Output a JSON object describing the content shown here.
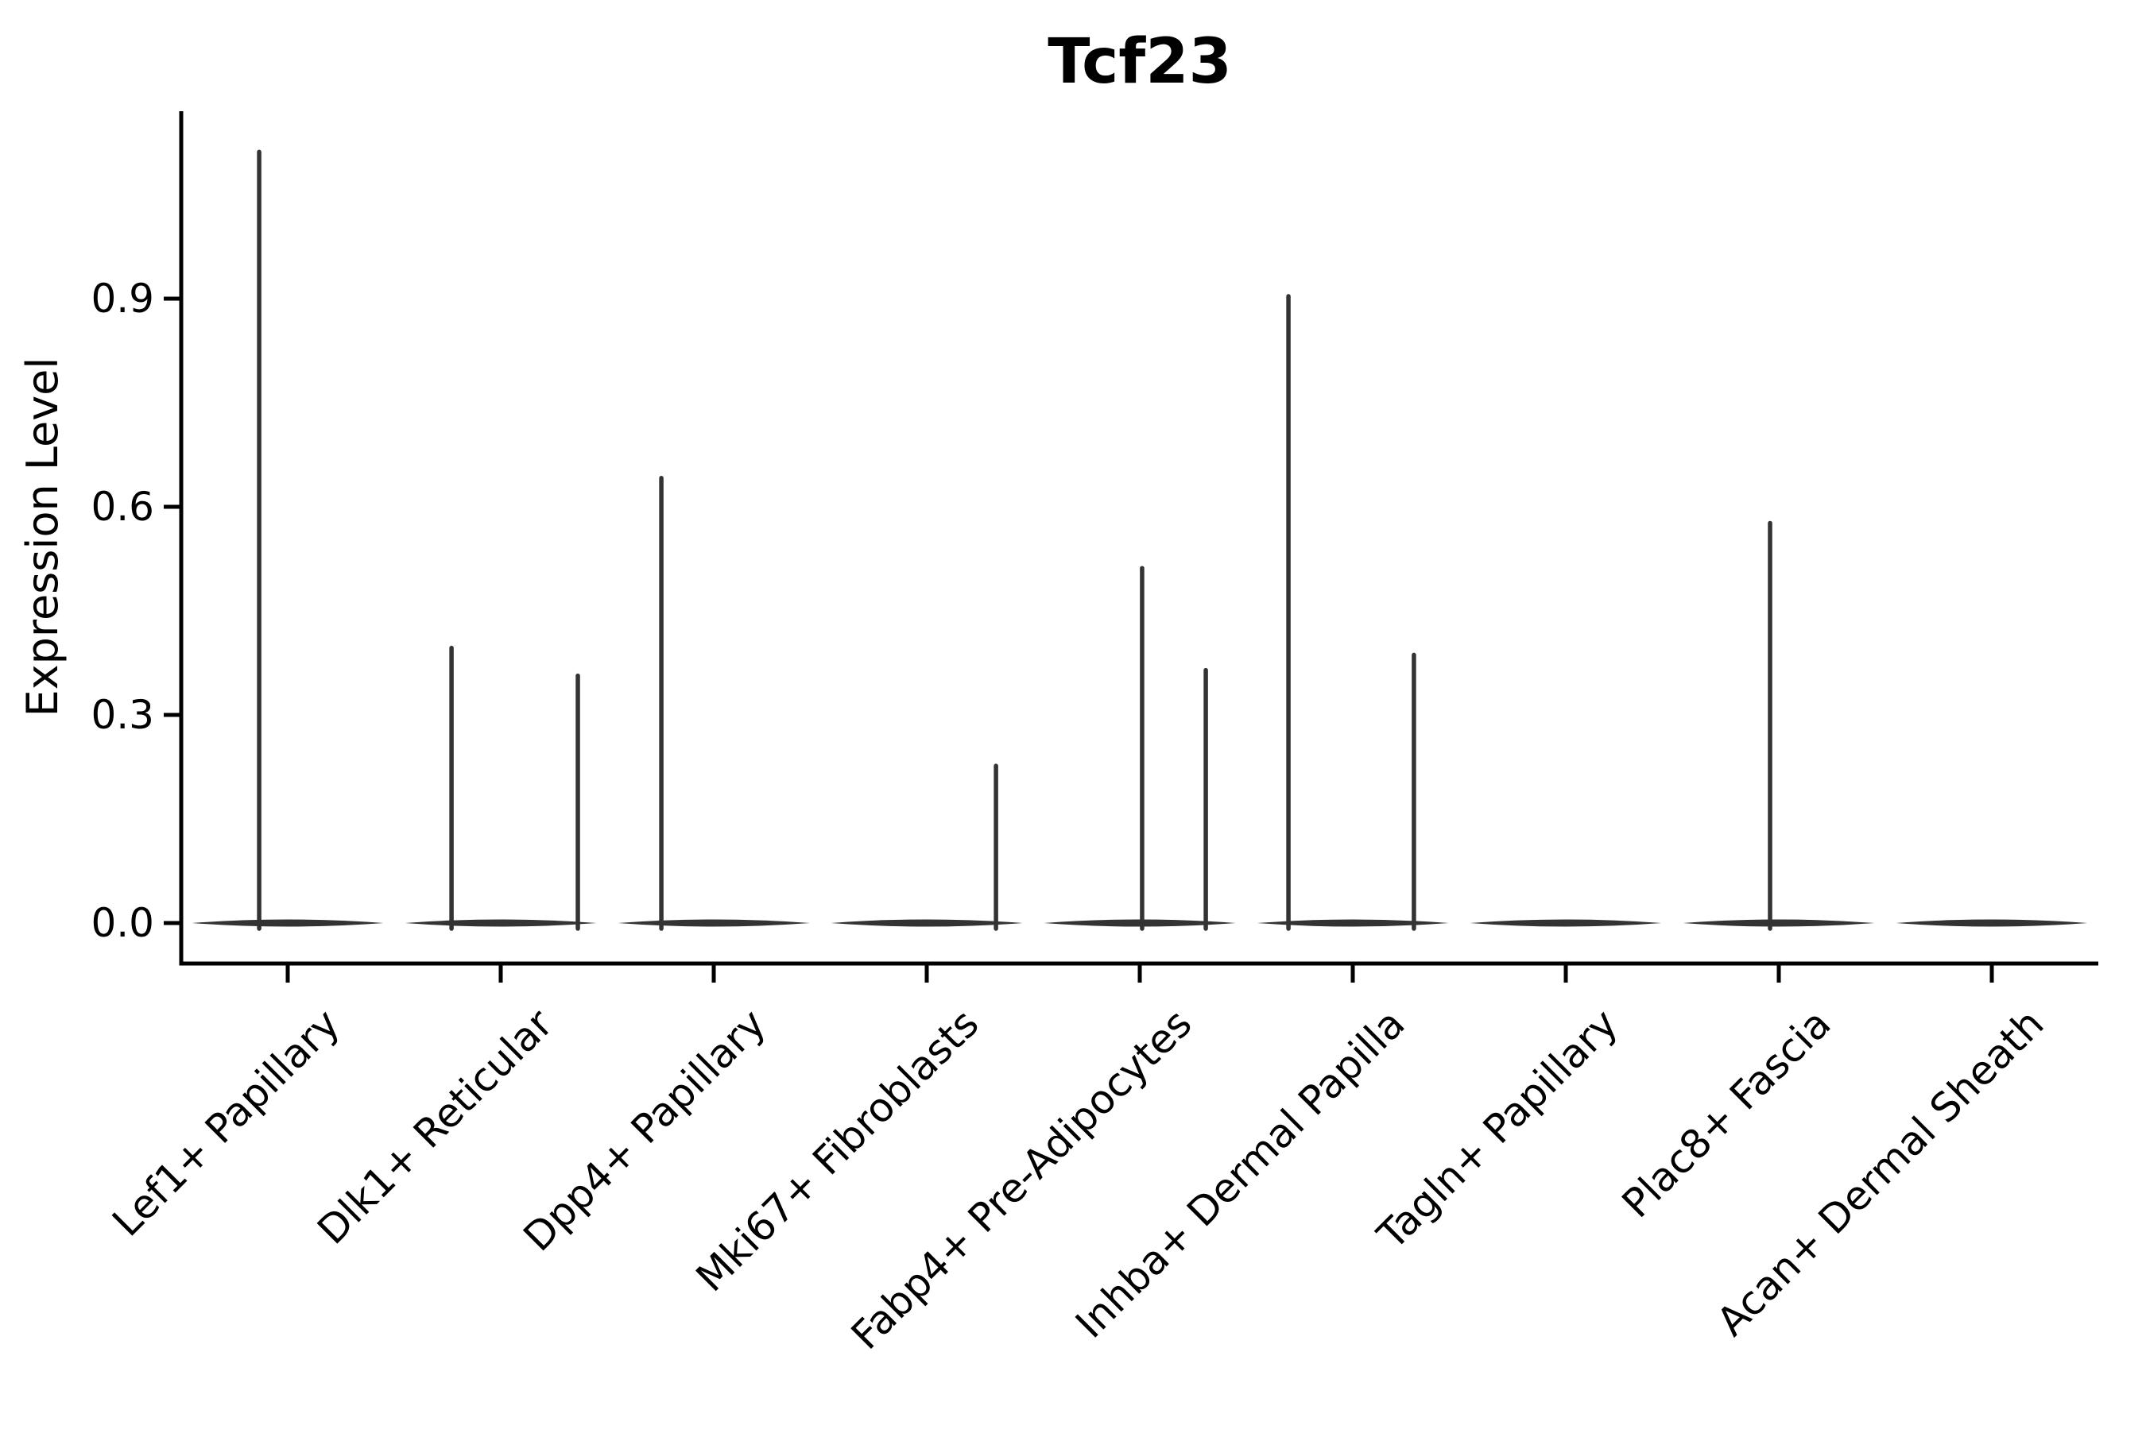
{
  "chart_data": {
    "type": "violin",
    "title": "Tcf23",
    "xlabel": "",
    "ylabel": "Expression Level",
    "yticks": [
      0.0,
      0.3,
      0.6,
      0.9
    ],
    "ytick_labels": [
      "0.0",
      "0.3",
      "0.6",
      "0.9"
    ],
    "ylim": [
      -0.06,
      1.17
    ],
    "grid": false,
    "legend": "none",
    "categories": [
      "Lef1+ Papillary",
      "Dlk1+ Reticular",
      "Dpp4+ Papillary",
      "Mki67+ Fibroblasts",
      "Fabp4+ Pre-Adipocytes",
      "Inhba+ Dermal Papilla",
      "Tagln+ Papillary",
      "Plac8+ Fascia",
      "Acan+ Dermal Sheath"
    ],
    "violin_width": 0.9,
    "violins": [
      {
        "category": "Lef1+ Papillary",
        "baseline_value": 0.0,
        "spikes": [
          {
            "value": 1.115,
            "x_offset": -0.134
          }
        ]
      },
      {
        "category": "Dlk1+ Reticular",
        "baseline_value": 0.0,
        "spikes": [
          {
            "value": 0.4,
            "x_offset": -0.231
          },
          {
            "value": 0.36,
            "x_offset": 0.362
          }
        ]
      },
      {
        "category": "Dpp4+ Papillary",
        "baseline_value": 0.0,
        "spikes": [
          {
            "value": 0.645,
            "x_offset": -0.246
          }
        ]
      },
      {
        "category": "Mki67+ Fibroblasts",
        "baseline_value": 0.0,
        "spikes": [
          {
            "value": 0.23,
            "x_offset": 0.325
          }
        ]
      },
      {
        "category": "Fabp4+ Pre-Adipocytes",
        "baseline_value": 0.0,
        "spikes": [
          {
            "value": 0.515,
            "x_offset": 0.011
          },
          {
            "value": 0.368,
            "x_offset": 0.31
          }
        ]
      },
      {
        "category": "Inhba+ Dermal Papilla",
        "baseline_value": 0.0,
        "spikes": [
          {
            "value": 0.907,
            "x_offset": -0.302
          },
          {
            "value": 0.39,
            "x_offset": 0.287
          }
        ]
      },
      {
        "category": "Tagln+ Papillary",
        "baseline_value": 0.0,
        "spikes": []
      },
      {
        "category": "Plac8+ Fascia",
        "baseline_value": 0.0,
        "spikes": [
          {
            "value": 0.58,
            "x_offset": -0.041
          }
        ]
      },
      {
        "category": "Acan+ Dermal Sheath",
        "baseline_value": 0.0,
        "spikes": []
      }
    ],
    "colors": {
      "violin": "#333333",
      "axis": "#000000",
      "text": "#000000",
      "background": "#ffffff"
    }
  }
}
